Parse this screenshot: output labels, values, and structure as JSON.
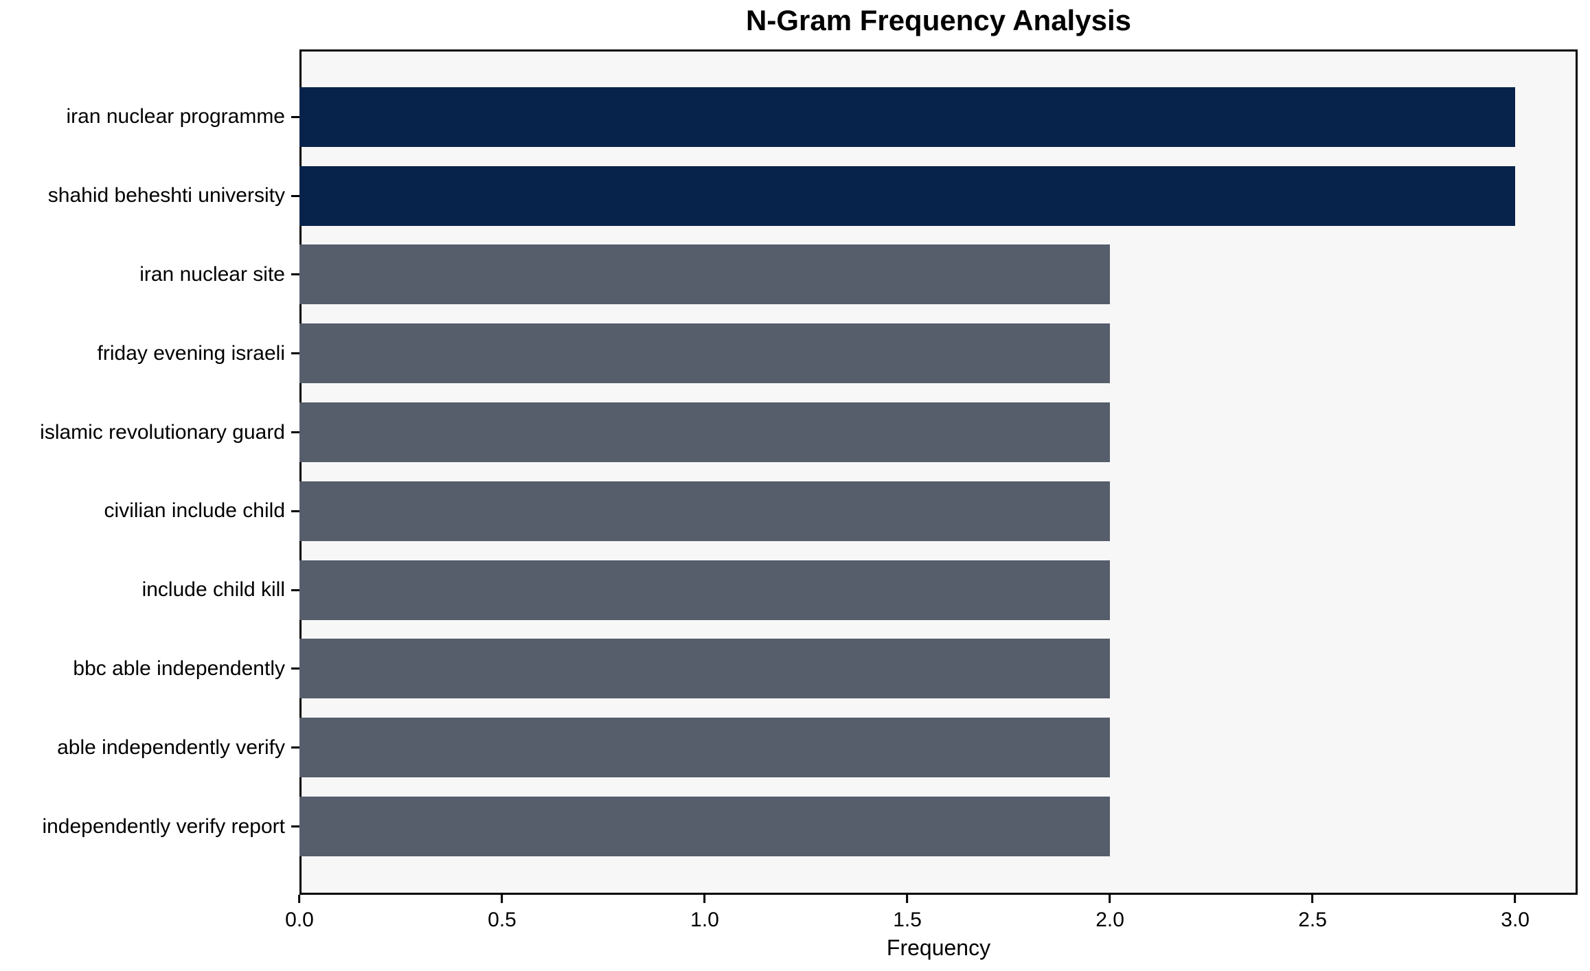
{
  "chart_data": {
    "type": "bar",
    "orientation": "horizontal",
    "title": "N-Gram Frequency Analysis",
    "xlabel": "Frequency",
    "ylabel": "",
    "categories": [
      "iran nuclear programme",
      "shahid beheshti university",
      "iran nuclear site",
      "friday evening israeli",
      "islamic revolutionary guard",
      "civilian include child",
      "include child kill",
      "bbc able independently",
      "able independently verify",
      "independently verify report"
    ],
    "values": [
      3,
      3,
      2,
      2,
      2,
      2,
      2,
      2,
      2,
      2
    ],
    "bar_colors": [
      "#07234b",
      "#07234b",
      "#565d6b",
      "#565d6b",
      "#565d6b",
      "#565d6b",
      "#565d6b",
      "#565d6b",
      "#565d6b",
      "#565d6b"
    ],
    "xticks": [
      "0.0",
      "0.5",
      "1.0",
      "1.5",
      "2.0",
      "2.5",
      "3.0"
    ],
    "xtick_values": [
      0.0,
      0.5,
      1.0,
      1.5,
      2.0,
      2.5,
      3.0
    ],
    "xlim": [
      0,
      3.154
    ],
    "grid": false,
    "legend_position": "none",
    "colors": {
      "highlight_bar": "#07234b",
      "default_bar": "#565d6b",
      "plot_background": "#f7f7f8",
      "figure_background": "#ffffff",
      "spine": "#000000",
      "text": "#000000"
    }
  }
}
